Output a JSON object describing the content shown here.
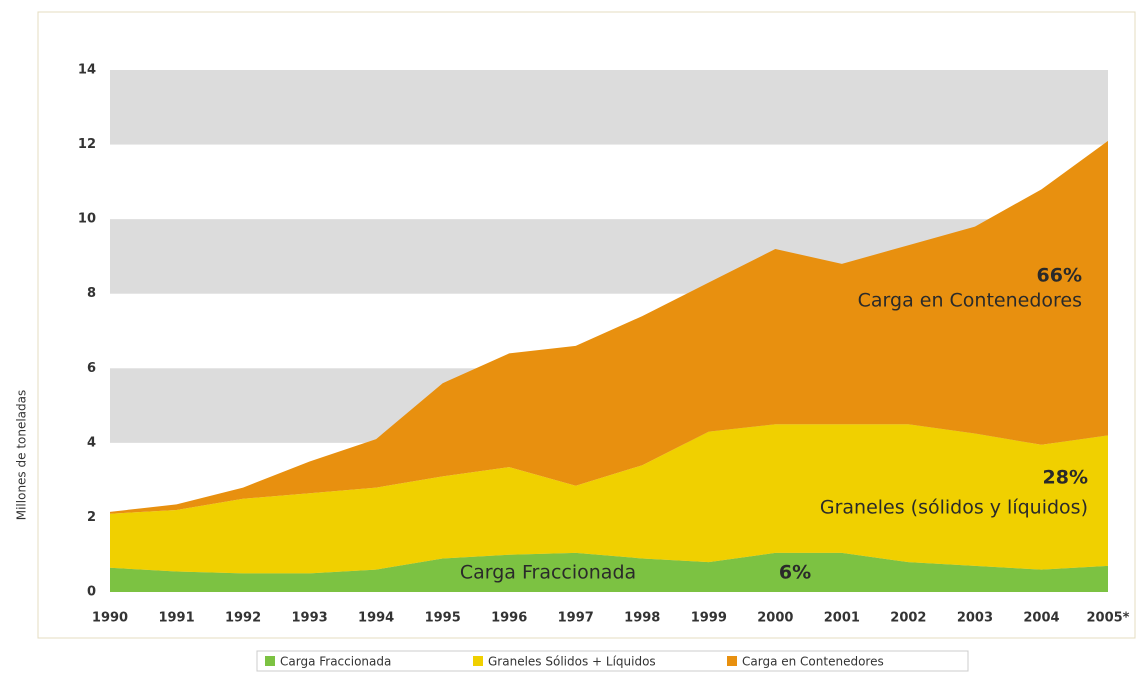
{
  "chart_data": {
    "type": "stacked_area",
    "y_axis_label": "Millones de toneladas",
    "categories": [
      "1990",
      "1991",
      "1992",
      "1993",
      "1994",
      "1995",
      "1996",
      "1997",
      "1998",
      "1999",
      "2000",
      "2001",
      "2002",
      "2003",
      "2004",
      "2005*"
    ],
    "series": [
      {
        "name": "Carga Fraccionada",
        "color": "#7cc242",
        "values": [
          0.65,
          0.55,
          0.5,
          0.5,
          0.6,
          0.9,
          1.0,
          1.05,
          0.9,
          0.8,
          1.05,
          1.05,
          0.8,
          0.7,
          0.6,
          0.7
        ]
      },
      {
        "name": "Graneles Sólidos + Líquidos",
        "color": "#f0d000",
        "values": [
          1.45,
          1.65,
          2.0,
          2.15,
          2.2,
          2.2,
          2.35,
          1.8,
          2.5,
          3.5,
          3.45,
          3.45,
          3.7,
          3.55,
          3.35,
          3.5
        ]
      },
      {
        "name": "Carga en Contenedores",
        "color": "#e8900f",
        "values": [
          0.05,
          0.15,
          0.3,
          0.85,
          1.3,
          2.5,
          3.05,
          3.75,
          4.0,
          4.0,
          4.7,
          4.3,
          4.8,
          5.55,
          6.85,
          7.9
        ]
      }
    ],
    "annotations": [
      "66%",
      "Carga en Contenedores",
      "28%",
      "Graneles (sólidos y líquidos)",
      "Carga Fraccionada",
      "6%"
    ],
    "ylim": [
      0,
      14
    ],
    "yticks": [
      0,
      2,
      4,
      6,
      8,
      10,
      12,
      14
    ],
    "grid": true,
    "grid_color": "#dcdcdc"
  }
}
